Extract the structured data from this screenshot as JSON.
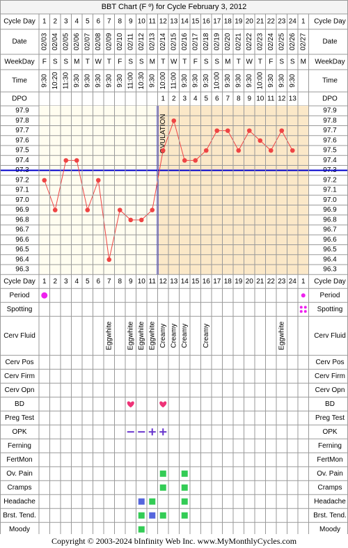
{
  "title": "BBT Chart (F º) for Cycle February 3, 2012",
  "labels": {
    "cycle_day": "Cycle Day",
    "date": "Date",
    "weekday": "WeekDay",
    "time": "Time",
    "dpo": "DPO",
    "ovulation": "OVULATION"
  },
  "columns": {
    "cycle_days": [
      "1",
      "2",
      "3",
      "4",
      "5",
      "6",
      "7",
      "8",
      "9",
      "10",
      "11",
      "12",
      "13",
      "14",
      "15",
      "16",
      "17",
      "18",
      "19",
      "20",
      "21",
      "22",
      "23",
      "24",
      "1"
    ],
    "dates": [
      "02/03",
      "02/04",
      "02/05",
      "02/06",
      "02/07",
      "02/08",
      "02/09",
      "02/10",
      "02/11",
      "02/12",
      "02/13",
      "02/14",
      "02/15",
      "02/16",
      "02/17",
      "02/18",
      "02/19",
      "02/20",
      "02/21",
      "02/22",
      "02/23",
      "02/24",
      "02/25",
      "02/26",
      "02/27"
    ],
    "weekdays": [
      "F",
      "S",
      "S",
      "M",
      "T",
      "W",
      "T",
      "F",
      "S",
      "S",
      "M",
      "T",
      "W",
      "T",
      "F",
      "S",
      "S",
      "M",
      "T",
      "W",
      "T",
      "F",
      "S",
      "S",
      "M"
    ],
    "times": [
      "9:30",
      "10:20",
      "11:30",
      "9:30",
      "9:30",
      "9:30",
      "9:30",
      "9:30",
      "11:00",
      "10:30",
      "9:30",
      "10:00",
      "11:00",
      "9:30",
      "9:30",
      "9:30",
      "10:00",
      "9:30",
      "9:30",
      "9:30",
      "10:00",
      "9:30",
      "9:30",
      "9:30",
      ""
    ],
    "dpo": [
      "",
      "",
      "",
      "",
      "",
      "",
      "",
      "",
      "",
      "",
      "",
      "1",
      "2",
      "3",
      "4",
      "5",
      "6",
      "7",
      "8",
      "9",
      "10",
      "11",
      "12",
      "13",
      ""
    ]
  },
  "chart_data": {
    "type": "line",
    "title": "BBT Chart (F º) for Cycle February 3, 2012",
    "xlabel": "Cycle Day",
    "ylabel": "",
    "x": [
      1,
      2,
      3,
      4,
      5,
      6,
      7,
      8,
      9,
      10,
      11,
      12,
      13,
      14,
      15,
      16,
      17,
      18,
      19,
      20,
      21,
      22,
      23,
      24
    ],
    "series": [
      {
        "values": [
          97.2,
          96.9,
          97.4,
          97.4,
          96.9,
          97.2,
          96.4,
          96.9,
          96.8,
          96.8,
          96.9,
          97.5,
          97.8,
          97.4,
          97.4,
          97.5,
          97.7,
          97.7,
          97.5,
          97.7,
          97.6,
          97.5,
          97.7,
          97.5
        ]
      }
    ],
    "yticks": [
      "97.9",
      "97.8",
      "97.7",
      "97.6",
      "97.5",
      "97.4",
      "97.3",
      "97.2",
      "97.1",
      "97.0",
      "96.9",
      "96.8",
      "96.7",
      "96.6",
      "96.5",
      "96.4",
      "96.3"
    ],
    "ylim": [
      96.3,
      97.9
    ],
    "coverline": 97.3,
    "ovulation_after_day": 11,
    "grid": true,
    "colors": {
      "line": "#ee4444",
      "coverline": "#0000cc",
      "pre_bg": "#fffdf0",
      "post_bg": "#fbe8c8"
    }
  },
  "symptoms": {
    "rows": [
      {
        "label": "Period",
        "marks": [
          {
            "day": 1,
            "kind": "dot",
            "color": "#ee22ee"
          },
          {
            "day": 25,
            "kind": "small-dot",
            "color": "#ee22ee"
          }
        ]
      },
      {
        "label": "Spotting",
        "marks": [
          {
            "day": 25,
            "kind": "quad",
            "color": "#ee22ee"
          }
        ]
      },
      {
        "label": "Cerv Fluid",
        "marks": [
          {
            "day": 7,
            "kind": "text",
            "text": "Eggwhite"
          },
          {
            "day": 9,
            "kind": "text",
            "text": "Eggwhite"
          },
          {
            "day": 10,
            "kind": "text",
            "text": "Eggwhite"
          },
          {
            "day": 11,
            "kind": "text",
            "text": "Eggwhite"
          },
          {
            "day": 12,
            "kind": "text",
            "text": "Creamy"
          },
          {
            "day": 13,
            "kind": "text",
            "text": "Creamy"
          },
          {
            "day": 14,
            "kind": "text",
            "text": "Creamy"
          },
          {
            "day": 16,
            "kind": "text",
            "text": "Creamy"
          },
          {
            "day": 23,
            "kind": "text",
            "text": "Eggwhite"
          }
        ]
      },
      {
        "label": "Cerv Pos",
        "marks": []
      },
      {
        "label": "Cerv Firm",
        "marks": []
      },
      {
        "label": "Cerv Opn",
        "marks": []
      },
      {
        "label": "BD",
        "marks": [
          {
            "day": 9,
            "kind": "heart",
            "color": "#ee3377"
          },
          {
            "day": 12,
            "kind": "heart",
            "color": "#ee3377"
          }
        ]
      },
      {
        "label": "Preg Test",
        "marks": []
      },
      {
        "label": "OPK",
        "marks": [
          {
            "day": 9,
            "kind": "minus",
            "color": "#6633cc"
          },
          {
            "day": 10,
            "kind": "minus",
            "color": "#6633cc"
          },
          {
            "day": 11,
            "kind": "plus",
            "color": "#6633cc"
          },
          {
            "day": 12,
            "kind": "plus",
            "color": "#6633cc"
          }
        ]
      },
      {
        "label": "Ferning",
        "marks": []
      },
      {
        "label": "FertMon",
        "marks": []
      },
      {
        "label": "Ov. Pain",
        "marks": [
          {
            "day": 12,
            "kind": "square",
            "color": "#33cc55"
          },
          {
            "day": 14,
            "kind": "square",
            "color": "#33cc55"
          }
        ]
      },
      {
        "label": "Cramps",
        "marks": [
          {
            "day": 12,
            "kind": "square",
            "color": "#33cc55"
          },
          {
            "day": 14,
            "kind": "square",
            "color": "#33cc55"
          }
        ]
      },
      {
        "label": "Headache",
        "marks": [
          {
            "day": 10,
            "kind": "square",
            "color": "#5566dd"
          },
          {
            "day": 11,
            "kind": "square",
            "color": "#33cc55"
          },
          {
            "day": 14,
            "kind": "square",
            "color": "#33cc55"
          }
        ]
      },
      {
        "label": "Brst. Tend.",
        "marks": [
          {
            "day": 10,
            "kind": "square",
            "color": "#33cc55"
          },
          {
            "day": 11,
            "kind": "square",
            "color": "#5566dd"
          },
          {
            "day": 12,
            "kind": "square",
            "color": "#33cc55"
          },
          {
            "day": 14,
            "kind": "square",
            "color": "#33cc55"
          }
        ]
      },
      {
        "label": "Moody",
        "marks": [
          {
            "day": 10,
            "kind": "square",
            "color": "#33cc55"
          }
        ]
      }
    ]
  },
  "footer": {
    "copyright": "Copyright © 2003-2024 bInfinity Web Inc.",
    "site": "www.MyMonthlyCycles.com"
  }
}
